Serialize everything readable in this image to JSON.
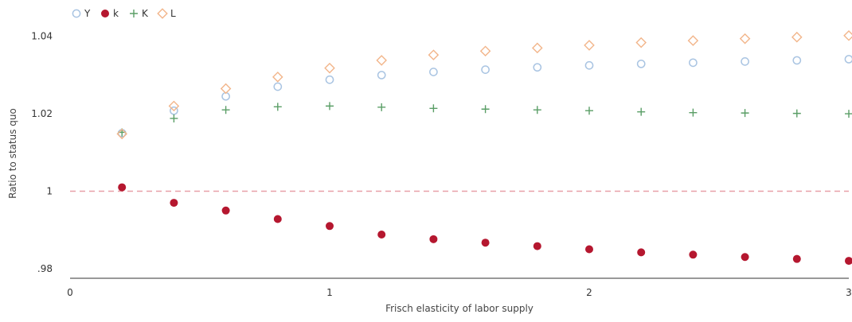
{
  "chart_data": {
    "type": "scatter",
    "title": "",
    "xlabel": "Frisch elasticity of labor supply",
    "ylabel": "Ratio to status quo",
    "xlim": [
      0,
      3
    ],
    "ylim": [
      0.9775,
      1.042
    ],
    "grid": false,
    "legend_position": "top-left",
    "x_ticks": [
      0,
      1,
      2,
      3
    ],
    "x_tick_labels": [
      "0",
      "1",
      "2",
      "3"
    ],
    "y_ticks": [
      0.98,
      1.0,
      1.02,
      1.04
    ],
    "y_tick_labels": [
      ".98",
      "1",
      "1.02",
      "1.04"
    ],
    "reference_line": {
      "y": 1.0,
      "style": "dashed",
      "color": "#e8a0a8"
    },
    "x": [
      0.2,
      0.4,
      0.6,
      0.8,
      1.0,
      1.2,
      1.4,
      1.6,
      1.8,
      2.0,
      2.2,
      2.4,
      2.6,
      2.8,
      3.0
    ],
    "series": [
      {
        "name": "Y",
        "marker": "circle-open",
        "color": "#a9c4e2",
        "values": [
          1.015,
          1.0208,
          1.0245,
          1.027,
          1.0288,
          1.03,
          1.0308,
          1.0314,
          1.032,
          1.0325,
          1.0329,
          1.0332,
          1.0335,
          1.0338,
          1.0341
        ]
      },
      {
        "name": "k",
        "marker": "circle-filled",
        "color": "#b5172f",
        "values": [
          1.001,
          0.997,
          0.995,
          0.9928,
          0.991,
          0.9888,
          0.9876,
          0.9867,
          0.9858,
          0.985,
          0.9842,
          0.9836,
          0.983,
          0.9825,
          0.982
        ]
      },
      {
        "name": "K",
        "marker": "plus",
        "color": "#5a9e66",
        "values": [
          1.0152,
          1.0188,
          1.021,
          1.0218,
          1.022,
          1.0217,
          1.0214,
          1.0212,
          1.021,
          1.0208,
          1.0205,
          1.0203,
          1.0202,
          1.0201,
          1.02
        ]
      },
      {
        "name": "L",
        "marker": "diamond-open",
        "color": "#f2b58a",
        "values": [
          1.0148,
          1.022,
          1.0265,
          1.0295,
          1.0318,
          1.0338,
          1.0352,
          1.0362,
          1.037,
          1.0377,
          1.0384,
          1.0389,
          1.0394,
          1.0398,
          1.0402
        ]
      }
    ]
  }
}
